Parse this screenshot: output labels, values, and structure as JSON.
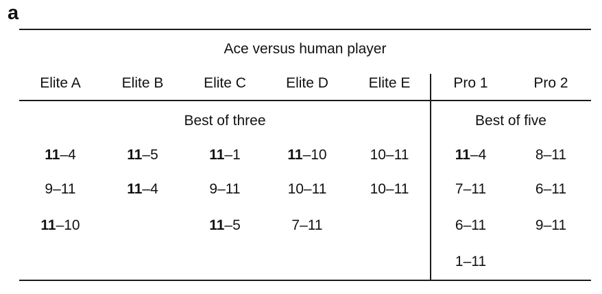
{
  "panel_label": "a",
  "table": {
    "title": "Ace versus human player",
    "groups": [
      {
        "label": "Best of three"
      },
      {
        "label": "Best of five"
      }
    ],
    "columns": [
      {
        "label": "Elite A",
        "scores": [
          {
            "b": "11",
            "r": "–4"
          },
          {
            "b": "",
            "r": "9–11"
          },
          {
            "b": "11",
            "r": "–10"
          }
        ]
      },
      {
        "label": "Elite B",
        "scores": [
          {
            "b": "11",
            "r": "–5"
          },
          {
            "b": "11",
            "r": "–4"
          }
        ]
      },
      {
        "label": "Elite C",
        "scores": [
          {
            "b": "11",
            "r": "–1"
          },
          {
            "b": "",
            "r": "9–11"
          },
          {
            "b": "11",
            "r": "–5"
          }
        ]
      },
      {
        "label": "Elite D",
        "scores": [
          {
            "b": "11",
            "r": "–10"
          },
          {
            "b": "",
            "r": "10–11"
          },
          {
            "b": "",
            "r": "7–11"
          }
        ]
      },
      {
        "label": "Elite E",
        "scores": [
          {
            "b": "",
            "r": "10–11"
          },
          {
            "b": "",
            "r": "10–11"
          }
        ]
      },
      {
        "label": "Pro 1",
        "scores": [
          {
            "b": "11",
            "r": "–4"
          },
          {
            "b": "",
            "r": "7–11"
          },
          {
            "b": "",
            "r": "6–11"
          },
          {
            "b": "",
            "r": "1–11"
          }
        ]
      },
      {
        "label": "Pro 2",
        "scores": [
          {
            "b": "",
            "r": "8–11"
          },
          {
            "b": "",
            "r": "6–11"
          },
          {
            "b": "",
            "r": "9–11"
          }
        ]
      }
    ]
  },
  "colors": {
    "text": "#111111",
    "rule": "#1a1a1a",
    "background": "#ffffff"
  }
}
